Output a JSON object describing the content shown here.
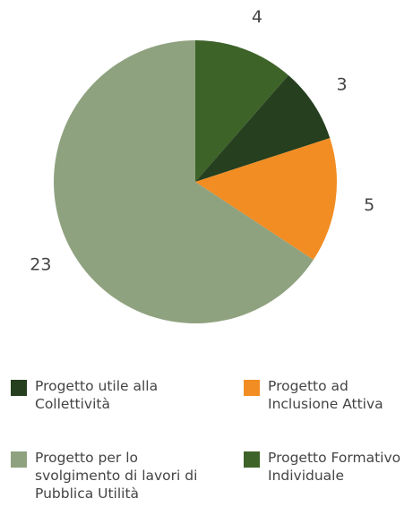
{
  "chart_data": {
    "type": "pie",
    "categories": [
      "Progetto Formativo Individuale",
      "Progetto utile alla Collettività",
      "Progetto ad Inclusione Attiva",
      "Progetto per lo svolgimento di lavori di Pubblica Utilità"
    ],
    "values": [
      4,
      3,
      5,
      23
    ],
    "colors": [
      "#3e6329",
      "#253f1f",
      "#f28d24",
      "#8fa27f"
    ]
  }
}
